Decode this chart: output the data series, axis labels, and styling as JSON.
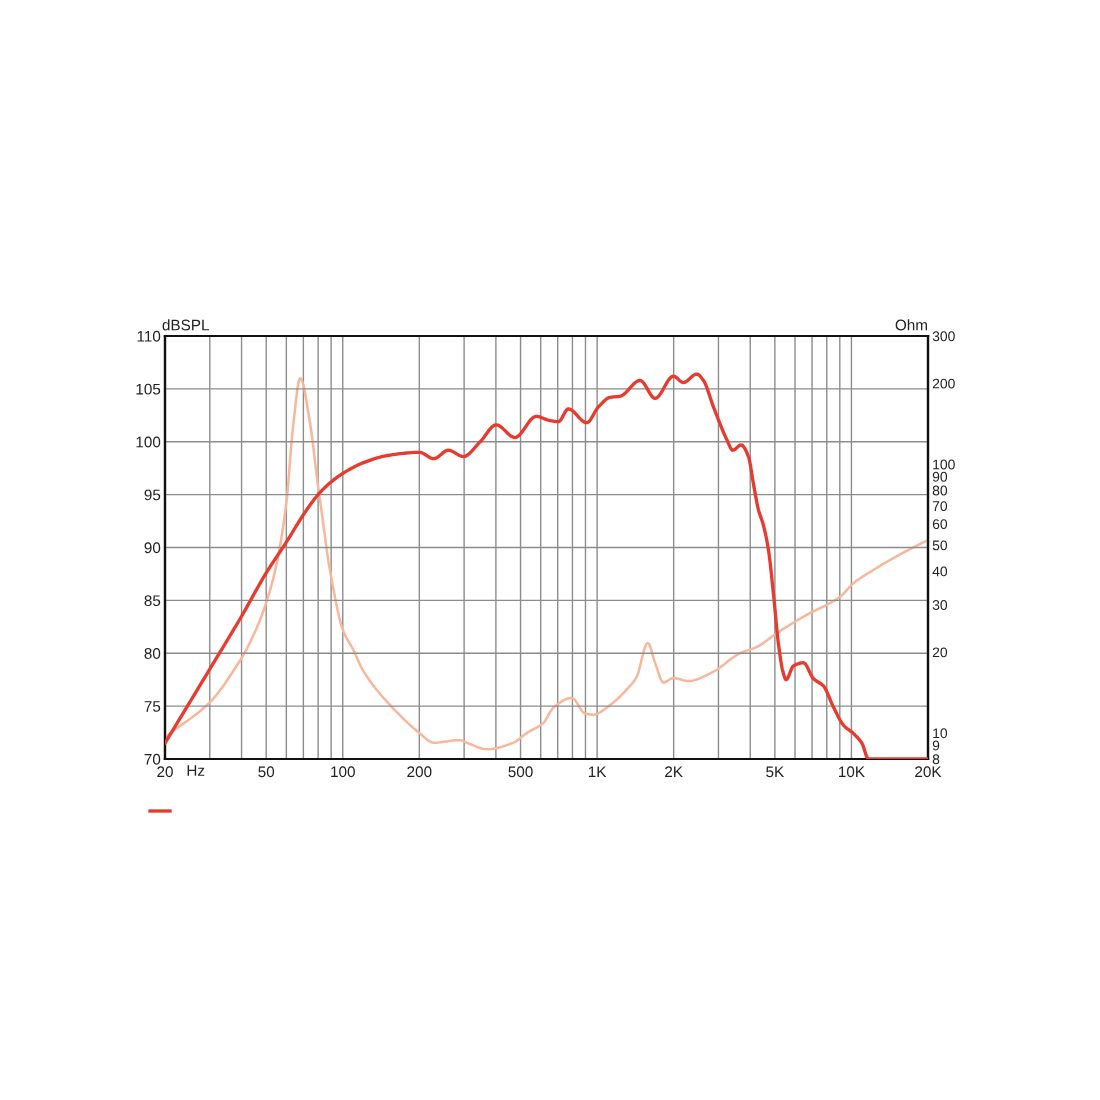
{
  "chart_data": {
    "type": "line",
    "xlabel": "Hz",
    "ylabel": "Ohm",
    "y2label": "dBSPL",
    "log": "xy",
    "grid": true,
    "marker": "none",
    "line_style": "solid",
    "xlim": [
      20,
      20000
    ],
    "xticks": [
      20,
      {
        "value": 30,
        "label": null
      },
      {
        "value": 40,
        "label": null
      },
      50,
      {
        "value": 60,
        "label": null
      },
      {
        "value": 70,
        "label": null
      },
      {
        "value": 80,
        "label": null
      },
      {
        "value": 90,
        "label": null
      },
      100,
      200,
      {
        "value": 300,
        "label": null
      },
      {
        "value": 400,
        "label": null
      },
      500,
      {
        "value": 600,
        "label": null
      },
      {
        "value": 700,
        "label": null
      },
      {
        "value": 800,
        "label": null
      },
      {
        "value": 900,
        "label": null
      },
      {
        "value": 1000,
        "label": "1K"
      },
      {
        "value": 2000,
        "label": "2K"
      },
      {
        "value": 3000,
        "label": null
      },
      {
        "value": 4000,
        "label": null
      },
      {
        "value": 5000,
        "label": "5K"
      },
      {
        "value": 6000,
        "label": null
      },
      {
        "value": 7000,
        "label": null
      },
      {
        "value": 8000,
        "label": null
      },
      {
        "value": 9000,
        "label": null
      },
      {
        "value": 10000,
        "label": "10K"
      },
      {
        "value": 20000,
        "label": "20K"
      }
    ],
    "ylim": [
      8,
      300
    ],
    "yticks": [
      8,
      9,
      10,
      20,
      30,
      40,
      50,
      60,
      70,
      80,
      90,
      100,
      200,
      300
    ],
    "y2lim": [
      70,
      110
    ],
    "y2ticks": [
      70,
      75,
      80,
      85,
      90,
      95,
      100,
      105,
      110
    ],
    "series": [
      {
        "color": "#e63b2e",
        "axis": "y2",
        "x": [
          20,
          30,
          40,
          50,
          60,
          70,
          80,
          90,
          100,
          120,
          150,
          200,
          228,
          260,
          298,
          347,
          401,
          475,
          576,
          653,
          704,
          771,
          910,
          1012,
          1125,
          1231,
          1475,
          1691,
          1995,
          2184,
          2466,
          2619,
          2866,
          3236,
          3416,
          3683,
          3936,
          4113,
          4305,
          4508,
          4715,
          4932,
          5163,
          5373,
          5534,
          5913,
          6478,
          7090,
          7766,
          8500,
          9300,
          10190,
          10990,
          11670,
          20000
        ],
        "values": [
          71.5,
          78.5,
          83.5,
          87.6,
          90.5,
          93.1,
          95.0,
          96.2,
          97.0,
          98.0,
          98.7,
          99.0,
          98.4,
          99.2,
          98.6,
          100.0,
          101.6,
          100.4,
          102.4,
          102.0,
          101.9,
          103.1,
          101.8,
          103.3,
          104.2,
          104.3,
          105.8,
          104.1,
          106.2,
          105.6,
          106.4,
          105.8,
          103.3,
          100.2,
          99.2,
          99.7,
          98.6,
          96.1,
          93.6,
          92.1,
          89.8,
          85.7,
          80.9,
          78.3,
          77.5,
          78.8,
          79.1,
          77.6,
          76.9,
          74.9,
          73.2,
          72.4,
          71.5,
          70.0,
          70.0
        ]
      },
      {
        "color": "#f8b69a",
        "x": [
          20,
          30,
          40,
          45,
          50,
          55,
          60,
          64,
          68,
          74,
          80,
          89,
          100,
          110,
          120,
          150,
          200,
          228,
          289,
          307,
          368,
          469,
          529,
          615,
          673,
          794,
          897,
          966,
          1125,
          1306,
          1432,
          1582,
          1691,
          1823,
          1995,
          2284,
          2866,
          3650,
          4246,
          5083,
          6669,
          9017,
          10190,
          12200,
          14600,
          20000
        ],
        "values": [
          9.6,
          13.0,
          19.0,
          23.6,
          30.5,
          42.8,
          71.6,
          142,
          209,
          146,
          82.5,
          40.4,
          24.2,
          20.4,
          17.1,
          13.0,
          10.0,
          9.2,
          9.4,
          9.2,
          8.7,
          9.2,
          10.0,
          10.9,
          12.4,
          13.5,
          11.8,
          11.7,
          12.7,
          14.5,
          16.2,
          21.6,
          18.2,
          15.4,
          16.0,
          15.6,
          16.9,
          19.8,
          20.9,
          23.5,
          27.5,
          32.1,
          36.1,
          40.4,
          44.7,
          52.2
        ]
      }
    ]
  }
}
